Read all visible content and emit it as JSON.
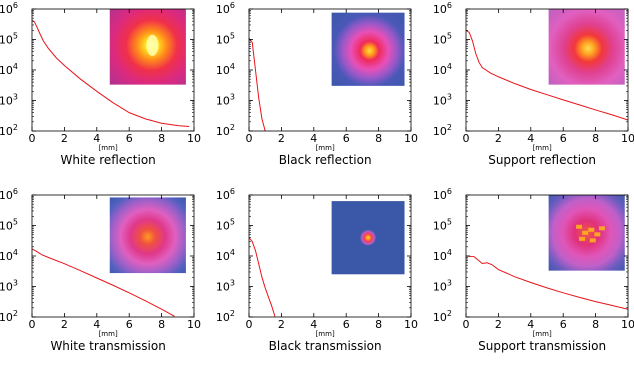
{
  "chart_data": [
    {
      "type": "line",
      "xlabel": "[mm]",
      "caption": "White reflection",
      "xlim": [
        0,
        10
      ],
      "ylim": [
        100,
        1000000
      ],
      "yscale": "log",
      "grid": false,
      "xticks": [
        "0",
        "2",
        "4",
        "6",
        "8",
        "10"
      ],
      "yticks": [
        {
          "base": "10",
          "exp": "2"
        },
        {
          "base": "10",
          "exp": "3"
        },
        {
          "base": "10",
          "exp": "4"
        },
        {
          "base": "10",
          "exp": "5"
        },
        {
          "base": "10",
          "exp": "6"
        }
      ],
      "inset": "white-reflection-spot",
      "series": [
        {
          "color": "#e8141a",
          "x": [
            0,
            0.15,
            0.3,
            0.5,
            0.7,
            1.0,
            1.5,
            2.0,
            3.0,
            4.0,
            5.0,
            6.0,
            7.0,
            8.0,
            9.0,
            9.7
          ],
          "y": [
            420000,
            380000,
            260000,
            150000,
            90000,
            52000,
            25000,
            14000,
            5000,
            2000,
            850,
            400,
            250,
            180,
            150,
            140
          ]
        }
      ]
    },
    {
      "type": "line",
      "xlabel": "[mm]",
      "caption": "Black reflection",
      "xlim": [
        0,
        10
      ],
      "ylim": [
        100,
        1000000
      ],
      "yscale": "log",
      "grid": false,
      "xticks": [
        "0",
        "2",
        "4",
        "6",
        "8",
        "10"
      ],
      "yticks": [
        {
          "base": "10",
          "exp": "2"
        },
        {
          "base": "10",
          "exp": "3"
        },
        {
          "base": "10",
          "exp": "4"
        },
        {
          "base": "10",
          "exp": "5"
        },
        {
          "base": "10",
          "exp": "6"
        }
      ],
      "inset": "black-reflection-spot",
      "series": [
        {
          "color": "#e8141a",
          "x": [
            0,
            0.2,
            0.4,
            0.6,
            0.8,
            1.0
          ],
          "y": [
            110000,
            80000,
            10000,
            1200,
            250,
            100
          ]
        }
      ]
    },
    {
      "type": "line",
      "xlabel": "[mm]",
      "caption": "Support reflection",
      "xlim": [
        0,
        10
      ],
      "ylim": [
        100,
        1000000
      ],
      "yscale": "log",
      "grid": false,
      "xticks": [
        "0",
        "2",
        "4",
        "6",
        "8",
        "10"
      ],
      "yticks": [
        {
          "base": "10",
          "exp": "2"
        },
        {
          "base": "10",
          "exp": "3"
        },
        {
          "base": "10",
          "exp": "4"
        },
        {
          "base": "10",
          "exp": "5"
        },
        {
          "base": "10",
          "exp": "6"
        }
      ],
      "inset": "support-reflection-spot",
      "series": [
        {
          "color": "#e8141a",
          "x": [
            0,
            0.2,
            0.4,
            0.6,
            0.8,
            1.0,
            1.5,
            2.0,
            3.0,
            4.0,
            5.0,
            6.0,
            7.0,
            8.0,
            9.0,
            10.0
          ],
          "y": [
            200000,
            170000,
            90000,
            35000,
            18000,
            12000,
            8000,
            6000,
            3600,
            2300,
            1550,
            1050,
            720,
            490,
            340,
            230
          ]
        }
      ]
    },
    {
      "type": "line",
      "xlabel": "[mm]",
      "caption": "White transmission",
      "xlim": [
        0,
        10
      ],
      "ylim": [
        100,
        1000000
      ],
      "yscale": "log",
      "grid": false,
      "xticks": [
        "0",
        "2",
        "4",
        "6",
        "8",
        "10"
      ],
      "yticks": [
        {
          "base": "10",
          "exp": "2"
        },
        {
          "base": "10",
          "exp": "3"
        },
        {
          "base": "10",
          "exp": "4"
        },
        {
          "base": "10",
          "exp": "5"
        },
        {
          "base": "10",
          "exp": "6"
        }
      ],
      "inset": "white-transmission-spot",
      "series": [
        {
          "color": "#e8141a",
          "x": [
            0,
            0.3,
            0.6,
            1.0,
            2.0,
            3.0,
            4.0,
            5.0,
            6.0,
            7.0,
            8.0,
            8.8
          ],
          "y": [
            17000,
            14000,
            11000,
            9000,
            5600,
            3300,
            1900,
            1100,
            620,
            340,
            180,
            105
          ]
        }
      ]
    },
    {
      "type": "line",
      "xlabel": "[mm]",
      "caption": "Black transmission",
      "xlim": [
        0,
        10
      ],
      "ylim": [
        100,
        1000000
      ],
      "yscale": "log",
      "grid": false,
      "xticks": [
        "0",
        "2",
        "4",
        "6",
        "8",
        "10"
      ],
      "yticks": [
        {
          "base": "10",
          "exp": "2"
        },
        {
          "base": "10",
          "exp": "3"
        },
        {
          "base": "10",
          "exp": "4"
        },
        {
          "base": "10",
          "exp": "5"
        },
        {
          "base": "10",
          "exp": "6"
        }
      ],
      "inset": "black-transmission-spot",
      "series": [
        {
          "color": "#e8141a",
          "x": [
            0,
            0.2,
            0.4,
            0.6,
            0.8,
            1.0,
            1.2,
            1.4,
            1.6
          ],
          "y": [
            40000,
            30000,
            15000,
            5500,
            2000,
            900,
            450,
            230,
            105
          ]
        }
      ]
    },
    {
      "type": "line",
      "xlabel": "[mm]",
      "caption": "Support transmission",
      "xlim": [
        0,
        10
      ],
      "ylim": [
        100,
        1000000
      ],
      "yscale": "log",
      "grid": false,
      "xticks": [
        "0",
        "2",
        "4",
        "6",
        "8",
        "10"
      ],
      "yticks": [
        {
          "base": "10",
          "exp": "2"
        },
        {
          "base": "10",
          "exp": "3"
        },
        {
          "base": "10",
          "exp": "4"
        },
        {
          "base": "10",
          "exp": "5"
        },
        {
          "base": "10",
          "exp": "6"
        }
      ],
      "inset": "support-transmission-spot",
      "series": [
        {
          "color": "#e8141a",
          "x": [
            0,
            0.5,
            0.8,
            1.0,
            1.3,
            1.6,
            2.0,
            3.0,
            4.0,
            5.0,
            6.0,
            7.0,
            8.0,
            9.0,
            10.0
          ],
          "y": [
            10000,
            9500,
            7000,
            5700,
            6000,
            5200,
            3600,
            2100,
            1350,
            900,
            620,
            440,
            320,
            240,
            180
          ]
        }
      ]
    }
  ]
}
